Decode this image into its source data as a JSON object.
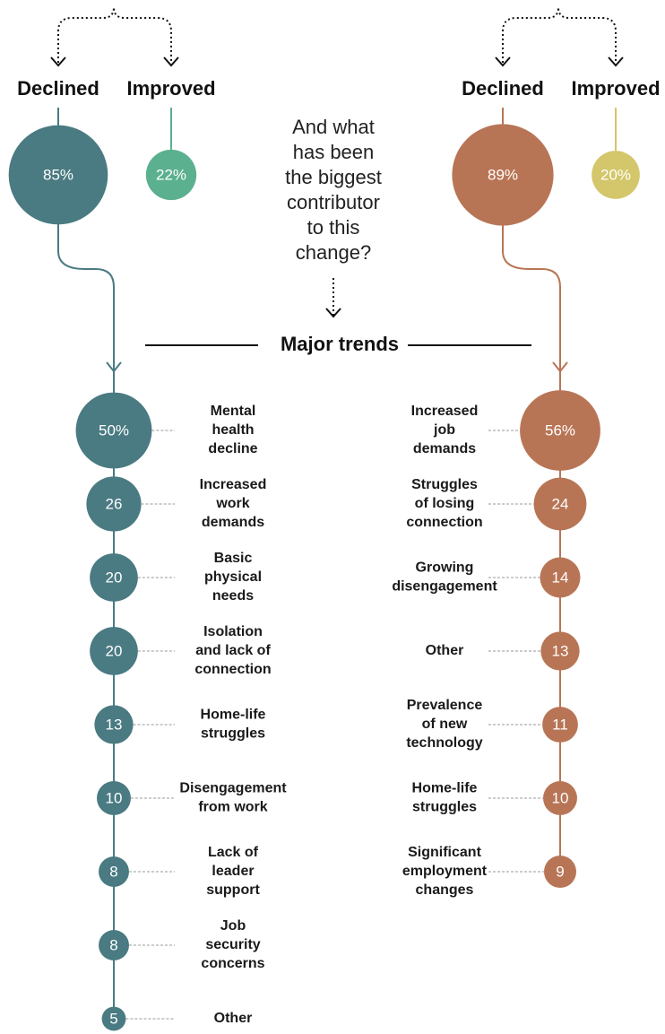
{
  "left": {
    "declined": {
      "label": "Declined",
      "value": "85%"
    },
    "improved": {
      "label": "Improved",
      "value": "22%"
    },
    "trends": [
      {
        "value": "50%",
        "label": [
          "Mental",
          "health",
          "decline"
        ]
      },
      {
        "value": "26",
        "label": [
          "Increased",
          "work",
          "demands"
        ]
      },
      {
        "value": "20",
        "label": [
          "Basic",
          "physical",
          "needs"
        ]
      },
      {
        "value": "20",
        "label": [
          "Isolation",
          "and lack of",
          "connection"
        ]
      },
      {
        "value": "13",
        "label": [
          "Home-life",
          "struggles"
        ]
      },
      {
        "value": "10",
        "label": [
          "Disengagement",
          "from work"
        ]
      },
      {
        "value": "8",
        "label": [
          "Lack of",
          "leader",
          "support"
        ]
      },
      {
        "value": "8",
        "label": [
          "Job",
          "security",
          "concerns"
        ]
      },
      {
        "value": "5",
        "label": [
          "Other"
        ]
      }
    ]
  },
  "right": {
    "declined": {
      "label": "Declined",
      "value": "89%"
    },
    "improved": {
      "label": "Improved",
      "value": "20%"
    },
    "trends": [
      {
        "value": "56%",
        "label": [
          "Increased",
          "job",
          "demands"
        ]
      },
      {
        "value": "24",
        "label": [
          "Struggles",
          "of losing",
          "connection"
        ]
      },
      {
        "value": "14",
        "label": [
          "Growing",
          "disengagement"
        ]
      },
      {
        "value": "13",
        "label": [
          "Other"
        ]
      },
      {
        "value": "11",
        "label": [
          "Prevalence",
          "of new",
          "technology"
        ]
      },
      {
        "value": "10",
        "label": [
          "Home-life",
          "struggles"
        ]
      },
      {
        "value": "9",
        "label": [
          "Significant",
          "employment",
          "changes"
        ]
      }
    ]
  },
  "question": [
    "And what",
    "has been",
    "the biggest",
    "contributor",
    "to this",
    "change?"
  ],
  "major_trends": "Major trends"
}
